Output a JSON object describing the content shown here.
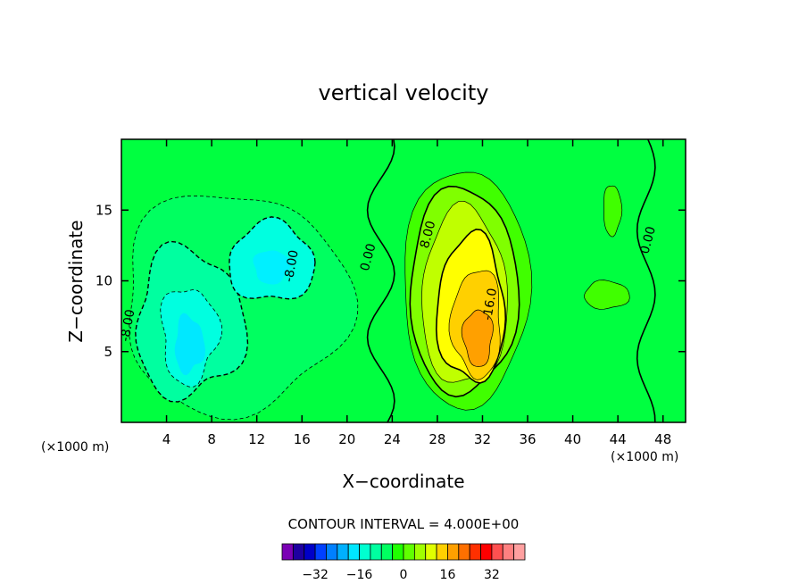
{
  "chart_data": {
    "type": "contour",
    "title": "vertical velocity",
    "xlabel": "X−coordinate",
    "ylabel": "Z−coordinate",
    "x_unit": "(×1000 m)",
    "z_unit": "(×1000 m)",
    "xlim": [
      0,
      50
    ],
    "ylim": [
      0,
      20
    ],
    "x_ticks": [
      4,
      8,
      12,
      16,
      20,
      24,
      28,
      32,
      36,
      40,
      44,
      48
    ],
    "y_ticks": [
      5,
      10,
      15
    ],
    "contour_interval_text": "CONTOUR INTERVAL = 4.000E+00",
    "contour_interval": 4,
    "contour_labels": [
      {
        "text": "0.00",
        "x": 22.2,
        "y": 11.6
      },
      {
        "text": "8.00",
        "x": 27.5,
        "y": 13.2
      },
      {
        "text": "0.00",
        "x": 47.0,
        "y": 12.8
      },
      {
        "text": "-8.00",
        "x": 0.9,
        "y": 6.8
      },
      {
        "text": "-8.00",
        "x": 15.4,
        "y": 11.0
      },
      {
        "text": "-16.0",
        "x": 33.0,
        "y": 8.3
      }
    ],
    "colorbar": {
      "levels": [
        -36,
        -32,
        -28,
        -24,
        -20,
        -16,
        -12,
        -8,
        -4,
        0,
        4,
        8,
        12,
        16,
        20,
        24,
        28,
        32,
        36
      ],
      "colors": [
        "#7a00b4",
        "#1e00a0",
        "#0000c8",
        "#0040ff",
        "#0080ff",
        "#00b0ff",
        "#00e6ff",
        "#00ffd0",
        "#00ffa0",
        "#00ff60",
        "#20ff00",
        "#60ff00",
        "#a0ff00",
        "#e0ff00",
        "#ffd000",
        "#ffa000",
        "#ff7000",
        "#ff3000",
        "#ff0000",
        "#ff5050",
        "#ff8080",
        "#ffa0a0"
      ],
      "tick_labels": [
        "−32",
        "−16",
        "0",
        "16",
        "32"
      ],
      "tick_values": [
        -32,
        -16,
        0,
        16,
        32
      ]
    },
    "regions": {
      "background_level": 0,
      "background_color": "#00ff40",
      "updraft": {
        "center": [
          31,
          7
        ],
        "max": 20,
        "colors": [
          "#40ff00",
          "#80ff00",
          "#c0ff00",
          "#ffff00",
          "#ffd000",
          "#ffa000"
        ]
      },
      "downdraft_west": {
        "center": [
          6,
          6
        ],
        "min": -16,
        "colors": [
          "#00ff60",
          "#00ffa0",
          "#00ffe0",
          "#00e8ff"
        ]
      },
      "downdraft_mid": {
        "center": [
          13.5,
          11
        ],
        "min": -12,
        "colors": [
          "#00ffa0",
          "#00ffe0",
          "#00f0ff"
        ]
      },
      "right_pos": {
        "center": [
          43.5,
          14
        ],
        "max": 4,
        "color": "#40ff00"
      }
    }
  }
}
